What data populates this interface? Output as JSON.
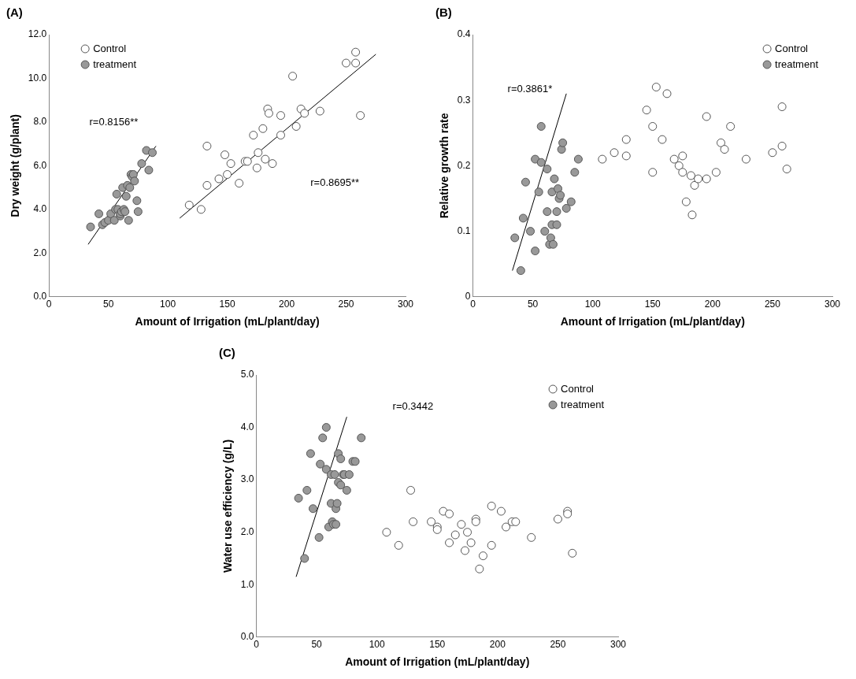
{
  "chart_data": [
    {
      "type": "scatter",
      "title": "(A)",
      "x_label": "Amount of Irrigation (mL/plant/day)",
      "y_label": "Dry weight (g/plant)",
      "xlim": [
        0,
        300
      ],
      "xticks": [
        0,
        50,
        100,
        150,
        200,
        250,
        300
      ],
      "ylim": [
        0,
        12
      ],
      "yticks": [
        {
          "value": 0,
          "label": "0.0"
        },
        {
          "value": 2,
          "label": "2.0"
        },
        {
          "value": 4,
          "label": "4.0"
        },
        {
          "value": 6,
          "label": "6.0"
        },
        {
          "value": 8,
          "label": "8.0"
        },
        {
          "value": 10,
          "label": "10.0"
        },
        {
          "value": 12,
          "label": "12.0"
        }
      ],
      "grid": false,
      "legend": "upper left",
      "series": [
        {
          "name": "Control",
          "color": "#ffffff",
          "marker": "circle",
          "x": [
            118,
            128,
            133,
            133,
            143,
            148,
            150,
            153,
            160,
            165,
            167,
            172,
            175,
            176,
            180,
            182,
            184,
            185,
            188,
            195,
            195,
            205,
            208,
            212,
            215,
            228,
            250,
            258,
            258,
            262
          ],
          "values": [
            4.2,
            4.0,
            6.9,
            5.1,
            5.4,
            6.5,
            5.6,
            6.1,
            5.2,
            6.2,
            6.2,
            7.4,
            5.9,
            6.6,
            7.7,
            6.3,
            8.6,
            8.4,
            6.1,
            7.4,
            8.3,
            10.1,
            7.8,
            8.6,
            8.4,
            8.5,
            10.7,
            11.2,
            10.7,
            8.3
          ]
        },
        {
          "name": "treatment",
          "color": "#999999",
          "marker": "circle",
          "x": [
            35,
            42,
            45,
            47,
            50,
            52,
            55,
            56,
            57,
            58,
            60,
            60,
            61,
            62,
            63,
            64,
            65,
            66,
            67,
            68,
            69,
            70,
            71,
            72,
            74,
            75,
            78,
            82,
            84,
            87
          ],
          "values": [
            3.2,
            3.8,
            3.3,
            3.4,
            3.5,
            3.8,
            3.5,
            4.0,
            4.7,
            4.0,
            3.7,
            3.8,
            3.9,
            5.0,
            4.0,
            3.9,
            4.6,
            5.1,
            3.5,
            5.0,
            5.6,
            5.5,
            5.6,
            5.3,
            4.4,
            3.9,
            6.1,
            6.7,
            5.8,
            6.6
          ]
        }
      ],
      "trend_lines": [
        {
          "x": [
            33,
            90
          ],
          "y": [
            2.4,
            6.9
          ]
        },
        {
          "x": [
            110,
            275
          ],
          "y": [
            3.6,
            11.1
          ]
        }
      ],
      "annotations": [
        {
          "text": "r=0.8156**",
          "x": 34,
          "y": 8.0
        },
        {
          "text": "r=0.8695**",
          "x": 220,
          "y": 5.2
        }
      ]
    },
    {
      "type": "scatter",
      "title": "(B)",
      "x_label": "Amount of Irrigation (mL/plant/day)",
      "y_label": "Relative growth rate",
      "xlim": [
        0,
        300
      ],
      "xticks": [
        0,
        50,
        100,
        150,
        200,
        250,
        300
      ],
      "ylim": [
        0,
        0.4
      ],
      "yticks": [
        0,
        0.1,
        0.2,
        0.3,
        0.4
      ],
      "grid": false,
      "legend": "upper right",
      "series": [
        {
          "name": "Control",
          "color": "#ffffff",
          "marker": "circle",
          "x": [
            108,
            118,
            128,
            128,
            145,
            150,
            150,
            153,
            158,
            162,
            168,
            172,
            175,
            175,
            178,
            182,
            183,
            185,
            188,
            195,
            195,
            203,
            207,
            210,
            215,
            228,
            250,
            258,
            258,
            262
          ],
          "values": [
            0.21,
            0.22,
            0.24,
            0.215,
            0.285,
            0.19,
            0.26,
            0.32,
            0.24,
            0.31,
            0.21,
            0.2,
            0.215,
            0.19,
            0.145,
            0.185,
            0.125,
            0.17,
            0.18,
            0.275,
            0.18,
            0.19,
            0.235,
            0.225,
            0.26,
            0.21,
            0.22,
            0.29,
            0.23,
            0.195
          ]
        },
        {
          "name": "treatment",
          "color": "#999999",
          "marker": "circle",
          "x": [
            35,
            40,
            42,
            44,
            48,
            52,
            52,
            55,
            57,
            57,
            60,
            62,
            62,
            64,
            65,
            66,
            66,
            67,
            68,
            70,
            70,
            71,
            72,
            73,
            74,
            75,
            78,
            82,
            85,
            88
          ],
          "values": [
            0.09,
            0.04,
            0.12,
            0.175,
            0.1,
            0.07,
            0.21,
            0.16,
            0.26,
            0.205,
            0.1,
            0.195,
            0.13,
            0.08,
            0.09,
            0.16,
            0.11,
            0.08,
            0.18,
            0.11,
            0.13,
            0.165,
            0.15,
            0.155,
            0.225,
            0.235,
            0.135,
            0.145,
            0.19,
            0.21
          ]
        }
      ],
      "trend_lines": [
        {
          "x": [
            33,
            78
          ],
          "y": [
            0.04,
            0.31
          ]
        }
      ],
      "annotations": [
        {
          "text": "r=0.3861*",
          "x": 29,
          "y": 0.317
        }
      ]
    },
    {
      "type": "scatter",
      "title": "(C)",
      "x_label": "Amount of Irrigation (mL/plant/day)",
      "y_label": "Water use efficiency (g/L)",
      "xlim": [
        0,
        300
      ],
      "xticks": [
        0,
        50,
        100,
        150,
        200,
        250,
        300
      ],
      "ylim": [
        0,
        5
      ],
      "yticks": [
        {
          "value": 0,
          "label": "0.0"
        },
        {
          "value": 1,
          "label": "1.0"
        },
        {
          "value": 2,
          "label": "2.0"
        },
        {
          "value": 3,
          "label": "3.0"
        },
        {
          "value": 4,
          "label": "4.0"
        },
        {
          "value": 5,
          "label": "5.0"
        }
      ],
      "grid": false,
      "legend": "upper right",
      "series": [
        {
          "name": "Control",
          "color": "#ffffff",
          "marker": "circle",
          "x": [
            108,
            118,
            128,
            130,
            145,
            150,
            150,
            155,
            160,
            160,
            165,
            170,
            173,
            175,
            178,
            182,
            182,
            185,
            188,
            195,
            195,
            203,
            207,
            212,
            215,
            228,
            250,
            258,
            258,
            262
          ],
          "values": [
            2.0,
            1.75,
            2.8,
            2.2,
            2.2,
            2.1,
            2.05,
            2.4,
            2.35,
            1.8,
            1.95,
            2.15,
            1.65,
            2.0,
            1.8,
            2.25,
            2.2,
            1.3,
            1.55,
            2.5,
            1.75,
            2.4,
            2.1,
            2.2,
            2.2,
            1.9,
            2.25,
            2.4,
            2.35,
            1.6
          ]
        },
        {
          "name": "treatment",
          "color": "#999999",
          "marker": "circle",
          "x": [
            35,
            40,
            42,
            45,
            47,
            52,
            53,
            55,
            58,
            58,
            60,
            62,
            62,
            63,
            64,
            65,
            66,
            66,
            67,
            68,
            68,
            70,
            70,
            72,
            73,
            75,
            77,
            80,
            82,
            87
          ],
          "values": [
            2.65,
            1.5,
            2.8,
            3.5,
            2.45,
            1.9,
            3.3,
            3.8,
            4.0,
            3.2,
            2.1,
            3.1,
            2.55,
            2.2,
            2.15,
            3.1,
            2.45,
            2.15,
            2.55,
            3.5,
            2.95,
            3.4,
            2.9,
            3.1,
            3.1,
            2.8,
            3.1,
            3.35,
            3.35,
            3.8
          ]
        }
      ],
      "trend_lines": [
        {
          "x": [
            33,
            75
          ],
          "y": [
            1.15,
            4.2
          ]
        }
      ],
      "annotations": [
        {
          "text": "r=0.3442",
          "x": 113,
          "y": 4.4
        }
      ]
    }
  ]
}
